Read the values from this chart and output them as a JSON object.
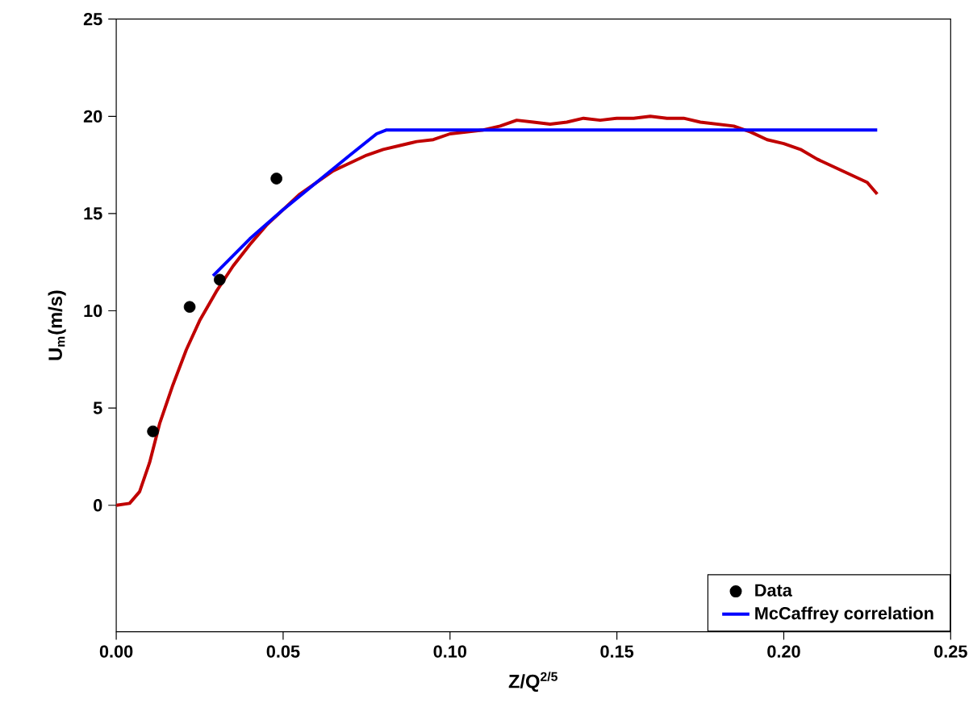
{
  "chart_data": {
    "type": "line",
    "xlabel": "Z/Q$^{2/5}$",
    "ylabel": "U$_{m}$(m/s)",
    "xlim": [
      0,
      0.25
    ],
    "ylim": [
      -6.5,
      25
    ],
    "xticks": [
      {
        "value": 0,
        "label": "0.00"
      },
      {
        "value": 0.05,
        "label": "0.05"
      },
      {
        "value": 0.1,
        "label": "0.10"
      },
      {
        "value": 0.15,
        "label": "0.15"
      },
      {
        "value": 0.2,
        "label": "0.20"
      },
      {
        "value": 0.25,
        "label": "0.25"
      }
    ],
    "yticks": [
      0,
      5,
      10,
      15,
      20,
      25
    ],
    "grid": false,
    "legend": "bottom right",
    "series": [
      {
        "name": "Data",
        "type": "scatter",
        "marker": "circle",
        "color": "#000000",
        "x": [
          0.011,
          0.022,
          0.031,
          0.048
        ],
        "values": [
          3.8,
          10.2,
          11.6,
          16.8
        ]
      },
      {
        "color": "#c00000",
        "x": [
          0,
          0.004,
          0.007,
          0.01,
          0.013,
          0.017,
          0.021,
          0.025,
          0.03,
          0.035,
          0.04,
          0.045,
          0.05,
          0.055,
          0.06,
          0.065,
          0.07,
          0.075,
          0.08,
          0.085,
          0.09,
          0.095,
          0.1,
          0.105,
          0.11,
          0.115,
          0.12,
          0.125,
          0.13,
          0.135,
          0.14,
          0.145,
          0.15,
          0.155,
          0.16,
          0.165,
          0.17,
          0.175,
          0.18,
          0.185,
          0.19,
          0.195,
          0.2,
          0.205,
          0.21,
          0.215,
          0.22,
          0.225,
          0.228
        ],
        "values": [
          0,
          0.1,
          0.7,
          2.2,
          4.2,
          6.2,
          8.0,
          9.5,
          11.0,
          12.3,
          13.4,
          14.4,
          15.2,
          16.0,
          16.6,
          17.2,
          17.6,
          18.0,
          18.3,
          18.5,
          18.7,
          18.8,
          19.1,
          19.2,
          19.3,
          19.5,
          19.8,
          19.7,
          19.6,
          19.7,
          19.9,
          19.8,
          19.9,
          19.9,
          20.0,
          19.9,
          19.9,
          19.7,
          19.6,
          19.5,
          19.2,
          18.8,
          18.6,
          18.3,
          17.8,
          17.4,
          17.0,
          16.6,
          16.0
        ]
      },
      {
        "name": "McCaffrey correlation",
        "color": "#0000ff",
        "x": [
          0.029,
          0.04,
          0.05,
          0.06,
          0.07,
          0.078,
          0.081,
          0.228
        ],
        "values": [
          11.8,
          13.7,
          15.2,
          16.6,
          18.0,
          19.1,
          19.3,
          19.3
        ]
      }
    ]
  }
}
